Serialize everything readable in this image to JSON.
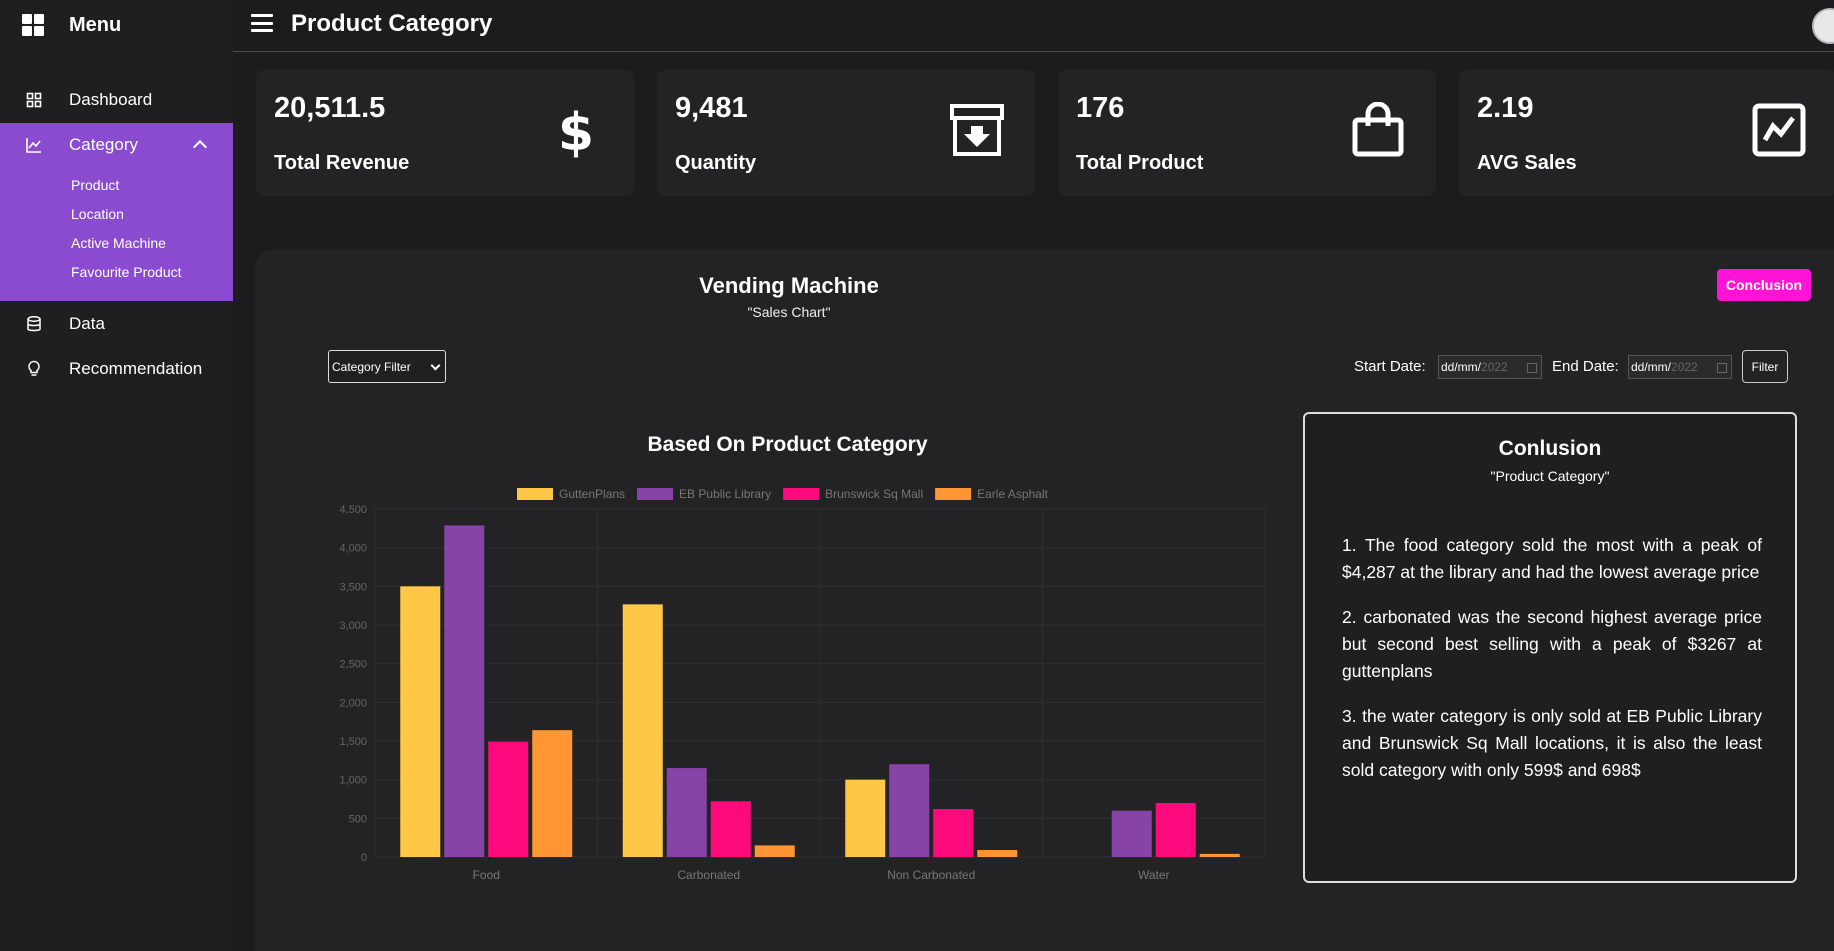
{
  "sidebar": {
    "title": "Menu",
    "items": {
      "dashboard": "Dashboard",
      "category": "Category",
      "data": "Data",
      "recommendation": "Recommendation"
    },
    "sub_items": [
      "Product",
      "Location",
      "Active Machine",
      "Favourite Product"
    ],
    "active_color": "#8a4bd1"
  },
  "header": {
    "title": "Product Category"
  },
  "stats": [
    {
      "value": "20,511.5",
      "label": "Total Revenue",
      "icon": "dollar-icon"
    },
    {
      "value": "9,481",
      "label": "Quantity",
      "icon": "archive-download-icon"
    },
    {
      "value": "176",
      "label": "Total Product",
      "icon": "shopping-bag-icon"
    },
    {
      "value": "2.19",
      "label": "AVG Sales",
      "icon": "trend-chart-icon"
    }
  ],
  "panel": {
    "title": "Vending Machine",
    "subtitle": "\"Sales Chart\"",
    "conclusion_button": "Conclusion",
    "category_filter": "Category Filter",
    "start_date_label": "Start Date:",
    "end_date_label": "End Date:",
    "date_placeholder": "dd/mm/",
    "date_year": "2022",
    "filter_button": "Filter"
  },
  "chart_title": "Based On Product Category",
  "chart_data": {
    "type": "bar",
    "categories": [
      "Food",
      "Carbonated",
      "Non Carbonated",
      "Water"
    ],
    "series": [
      {
        "name": "GuttenPlans",
        "color": "#ffc745",
        "values": [
          3500,
          3267,
          1000,
          0
        ]
      },
      {
        "name": "EB Public Library",
        "color": "#8744a8",
        "values": [
          4287,
          1150,
          1200,
          599
        ]
      },
      {
        "name": "Brunswick Sq Mall",
        "color": "#ff0a7c",
        "values": [
          1490,
          720,
          620,
          698
        ]
      },
      {
        "name": "Earle Asphalt",
        "color": "#ff9633",
        "values": [
          1640,
          150,
          90,
          40
        ]
      }
    ],
    "yticks": [
      "0",
      "500",
      "1,000",
      "1,500",
      "2,000",
      "2,500",
      "3,000",
      "3,500",
      "4,000",
      "4,500"
    ],
    "ylim": [
      0,
      4500
    ],
    "grid": true,
    "legend": "top"
  },
  "conclusion": {
    "title": "Conlusion",
    "subtitle": "\"Product Category\"",
    "points": [
      "1. The food category sold the most with a peak of $4,287 at the library and had the lowest average price",
      "2. carbonated was the second highest average price but second best selling with a peak of $3267 at guttenplans",
      "3. the water category is only sold at EB Public Library and Brunswick Sq Mall locations, it is also the least sold category with only 599$ and 698$"
    ]
  }
}
